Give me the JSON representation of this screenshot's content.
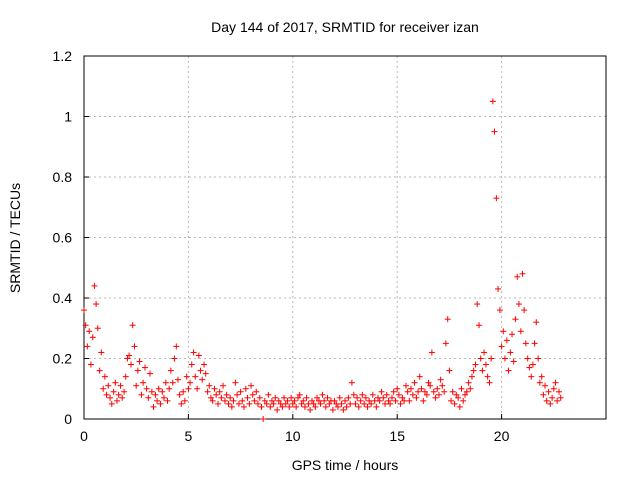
{
  "chart_data": {
    "type": "scatter",
    "title": "Day 144 of 2017, SRMTID for receiver izan",
    "xlabel": "GPS time / hours",
    "ylabel": "SRMTID / TECUs",
    "xlim": [
      0,
      25
    ],
    "ylim": [
      0,
      1.2
    ],
    "xticks": [
      0,
      5,
      10,
      15,
      20
    ],
    "yticks": [
      0,
      0.2,
      0.4,
      0.6,
      0.8,
      1.0,
      1.2
    ],
    "xtick_labels": [
      "0",
      "5",
      "10",
      "15",
      "20"
    ],
    "ytick_labels": [
      "0",
      "0.2",
      "0.4",
      "0.6",
      "0.8",
      "1",
      "1.2"
    ],
    "grid": true,
    "legend": "none",
    "marker": "+",
    "color": "#ff0000",
    "approx_sampling_note": "Dense series digitized approximately; representative points shown.",
    "series": [
      {
        "name": "SRMTID",
        "x": [
          0.0,
          0.08,
          0.16,
          0.25,
          0.33,
          0.42,
          0.5,
          0.58,
          0.66,
          0.75,
          0.83,
          0.92,
          1.0,
          1.08,
          1.16,
          1.25,
          1.33,
          1.42,
          1.5,
          1.58,
          1.66,
          1.75,
          1.83,
          1.92,
          2.0,
          2.08,
          2.16,
          2.25,
          2.33,
          2.42,
          2.5,
          2.58,
          2.66,
          2.75,
          2.83,
          2.92,
          3.0,
          3.08,
          3.16,
          3.25,
          3.33,
          3.42,
          3.5,
          3.58,
          3.66,
          3.75,
          3.83,
          3.92,
          4.0,
          4.08,
          4.16,
          4.25,
          4.33,
          4.42,
          4.5,
          4.58,
          4.66,
          4.75,
          4.83,
          4.92,
          5.0,
          5.08,
          5.16,
          5.25,
          5.33,
          5.42,
          5.5,
          5.58,
          5.66,
          5.75,
          5.83,
          5.92,
          6.0,
          6.08,
          6.16,
          6.25,
          6.33,
          6.42,
          6.5,
          6.58,
          6.66,
          6.75,
          6.83,
          6.92,
          7.0,
          7.08,
          7.16,
          7.25,
          7.33,
          7.42,
          7.5,
          7.58,
          7.66,
          7.75,
          7.83,
          7.92,
          8.0,
          8.08,
          8.16,
          8.25,
          8.33,
          8.42,
          8.5,
          8.58,
          8.66,
          8.75,
          8.83,
          8.92,
          9.0,
          9.08,
          9.16,
          9.25,
          9.33,
          9.42,
          9.5,
          9.58,
          9.66,
          9.75,
          9.83,
          9.92,
          10.0,
          10.08,
          10.16,
          10.25,
          10.33,
          10.42,
          10.5,
          10.58,
          10.66,
          10.75,
          10.83,
          10.92,
          11.0,
          11.08,
          11.16,
          11.25,
          11.33,
          11.42,
          11.5,
          11.58,
          11.66,
          11.75,
          11.83,
          11.92,
          12.0,
          12.08,
          12.16,
          12.25,
          12.33,
          12.42,
          12.5,
          12.58,
          12.66,
          12.75,
          12.83,
          12.92,
          13.0,
          13.08,
          13.16,
          13.25,
          13.33,
          13.42,
          13.5,
          13.58,
          13.66,
          13.75,
          13.83,
          13.92,
          14.0,
          14.08,
          14.16,
          14.25,
          14.33,
          14.42,
          14.5,
          14.58,
          14.66,
          14.75,
          14.83,
          14.92,
          15.0,
          15.08,
          15.16,
          15.25,
          15.33,
          15.42,
          15.5,
          15.58,
          15.66,
          15.75,
          15.83,
          15.92,
          16.0,
          16.08,
          16.16,
          16.25,
          16.33,
          16.42,
          16.5,
          16.58,
          16.66,
          16.75,
          16.83,
          16.92,
          17.0,
          17.08,
          17.16,
          17.25,
          17.33,
          17.42,
          17.5,
          17.58,
          17.66,
          17.75,
          17.83,
          17.92,
          18.0,
          18.08,
          18.16,
          18.25,
          18.33,
          18.42,
          18.5,
          18.58,
          18.66,
          18.75,
          18.83,
          18.92,
          19.0,
          19.08,
          19.16,
          19.25,
          19.33,
          19.42,
          19.5,
          19.58,
          19.66,
          19.75,
          19.83,
          19.92,
          20.0,
          20.08,
          20.16,
          20.25,
          20.33,
          20.42,
          20.5,
          20.58,
          20.66,
          20.75,
          20.83,
          20.92,
          21.0,
          21.08,
          21.16,
          21.25,
          21.33,
          21.42,
          21.5,
          21.58,
          21.66,
          21.75,
          21.83,
          21.92,
          22.0,
          22.08,
          22.16,
          22.25,
          22.33,
          22.42,
          22.5,
          22.58,
          22.66,
          22.75,
          22.83
        ],
        "y": [
          0.36,
          0.31,
          0.24,
          0.29,
          0.18,
          0.27,
          0.44,
          0.38,
          0.3,
          0.16,
          0.22,
          0.1,
          0.14,
          0.08,
          0.11,
          0.07,
          0.05,
          0.09,
          0.12,
          0.06,
          0.08,
          0.11,
          0.07,
          0.09,
          0.14,
          0.2,
          0.21,
          0.18,
          0.31,
          0.24,
          0.11,
          0.16,
          0.19,
          0.08,
          0.12,
          0.17,
          0.1,
          0.07,
          0.15,
          0.09,
          0.04,
          0.08,
          0.06,
          0.1,
          0.05,
          0.09,
          0.07,
          0.12,
          0.06,
          0.1,
          0.16,
          0.12,
          0.2,
          0.24,
          0.13,
          0.08,
          0.05,
          0.09,
          0.06,
          0.14,
          0.1,
          0.12,
          0.18,
          0.22,
          0.14,
          0.1,
          0.21,
          0.16,
          0.13,
          0.18,
          0.15,
          0.09,
          0.11,
          0.07,
          0.06,
          0.1,
          0.08,
          0.05,
          0.09,
          0.07,
          0.11,
          0.06,
          0.08,
          0.05,
          0.07,
          0.04,
          0.06,
          0.12,
          0.08,
          0.05,
          0.09,
          0.06,
          0.04,
          0.1,
          0.07,
          0.05,
          0.11,
          0.08,
          0.06,
          0.09,
          0.05,
          0.07,
          0.04,
          0.0,
          0.06,
          0.05,
          0.08,
          0.04,
          0.06,
          0.05,
          0.07,
          0.03,
          0.06,
          0.05,
          0.04,
          0.07,
          0.05,
          0.06,
          0.04,
          0.07,
          0.05,
          0.06,
          0.04,
          0.07,
          0.08,
          0.05,
          0.06,
          0.04,
          0.07,
          0.05,
          0.03,
          0.06,
          0.05,
          0.04,
          0.07,
          0.06,
          0.05,
          0.08,
          0.06,
          0.04,
          0.07,
          0.05,
          0.06,
          0.03,
          0.06,
          0.05,
          0.04,
          0.07,
          0.05,
          0.03,
          0.06,
          0.04,
          0.07,
          0.05,
          0.12,
          0.08,
          0.05,
          0.07,
          0.04,
          0.06,
          0.08,
          0.05,
          0.07,
          0.04,
          0.06,
          0.05,
          0.08,
          0.06,
          0.04,
          0.07,
          0.06,
          0.09,
          0.07,
          0.05,
          0.08,
          0.06,
          0.05,
          0.07,
          0.09,
          0.06,
          0.1,
          0.08,
          0.05,
          0.07,
          0.06,
          0.11,
          0.09,
          0.06,
          0.1,
          0.08,
          0.12,
          0.07,
          0.09,
          0.14,
          0.1,
          0.06,
          0.09,
          0.08,
          0.12,
          0.11,
          0.22,
          0.09,
          0.07,
          0.1,
          0.08,
          0.13,
          0.11,
          0.09,
          0.25,
          0.33,
          0.16,
          0.06,
          0.09,
          0.05,
          0.08,
          0.07,
          0.04,
          0.1,
          0.06,
          0.08,
          0.09,
          0.12,
          0.1,
          0.14,
          0.16,
          0.18,
          0.38,
          0.31,
          0.2,
          0.16,
          0.22,
          0.18,
          0.14,
          0.12,
          0.2,
          1.05,
          0.95,
          0.73,
          0.43,
          0.36,
          0.24,
          0.29,
          0.2,
          0.26,
          0.16,
          0.22,
          0.28,
          0.19,
          0.33,
          0.47,
          0.38,
          0.29,
          0.48,
          0.36,
          0.25,
          0.2,
          0.17,
          0.14,
          0.18,
          0.25,
          0.32,
          0.2,
          0.12,
          0.14,
          0.08,
          0.11,
          0.06,
          0.09,
          0.05,
          0.07,
          0.1,
          0.12,
          0.06,
          0.09,
          0.07
        ]
      }
    ]
  }
}
